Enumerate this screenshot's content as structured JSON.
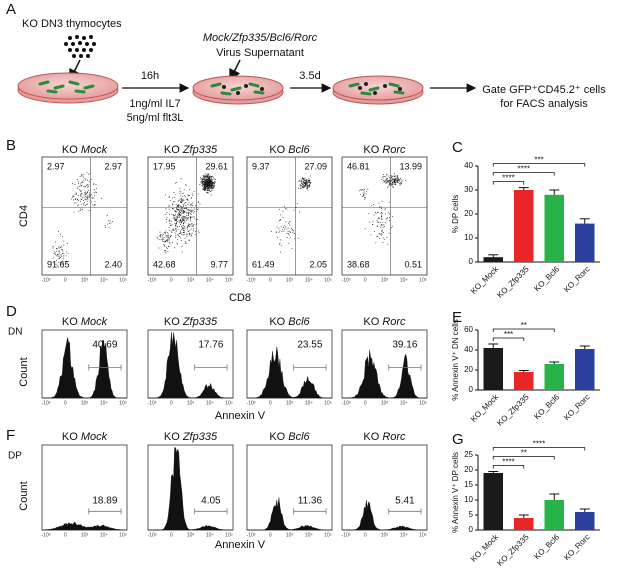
{
  "panel_a": {
    "label": "A",
    "cells": "KO DN3 thymocytes",
    "virus": "Mock/Zfp335/Bcl6/Rorc",
    "virus_sub": "Virus Supernatant",
    "time1": "16h",
    "cond1": "1ng/ml IL7",
    "cond2": "5ng/ml flt3L",
    "time2": "3.5d",
    "gate1": "Gate GFP⁺CD45.2⁺ cells",
    "gate2": "for FACS analysis"
  },
  "samples": [
    {
      "prefix": "KO",
      "name": "Mock"
    },
    {
      "prefix": "KO",
      "name": "Zfp335"
    },
    {
      "prefix": "KO",
      "name": "Bcl6"
    },
    {
      "prefix": "KO",
      "name": "Rorc"
    }
  ],
  "flow_ticks": [
    "-10³",
    "0",
    "10³",
    "10⁴",
    "10⁵"
  ],
  "panel_b": {
    "label": "B",
    "y_label": "CD4",
    "x_label": "CD8",
    "quadrants": [
      [
        "2.97",
        "2.97",
        "91.65",
        "2.40"
      ],
      [
        "17.95",
        "29.61",
        "42.68",
        "9.77"
      ],
      [
        "9.37",
        "27.09",
        "61.49",
        "2.05"
      ],
      [
        "46.81",
        "13.99",
        "38.68",
        "0.51"
      ]
    ]
  },
  "panel_d": {
    "label": "D",
    "population": "DN",
    "y_label": "Count",
    "x_label": "Annexin V",
    "gates": [
      "40.69",
      "17.76",
      "23.55",
      "39.16"
    ]
  },
  "panel_f": {
    "label": "F",
    "population": "DP",
    "y_label": "Count",
    "x_label": "Annexin V",
    "gates": [
      "18.89",
      "4.05",
      "11.36",
      "5.41"
    ]
  },
  "chart_data": [
    {
      "type": "bar",
      "label": "C",
      "y_label": "% DP cells",
      "categories": [
        "KO_Mock",
        "KO_Zfp335",
        "KO_Bcl6",
        "KO_Rorc"
      ],
      "colors": [
        "#1a1a1a",
        "#e8262a",
        "#27b34a",
        "#2b3f9e"
      ],
      "values": [
        2,
        30,
        28,
        16
      ],
      "errors": [
        1,
        1,
        2,
        2
      ],
      "ylim": [
        0,
        40
      ],
      "yticks": [
        0,
        10,
        20,
        30,
        40
      ],
      "brackets": [
        {
          "label": "****",
          "between": [
            0,
            1
          ]
        },
        {
          "label": "****",
          "between": [
            0,
            2
          ]
        },
        {
          "label": "***",
          "between": [
            0,
            3
          ]
        }
      ]
    },
    {
      "type": "bar",
      "label": "E",
      "y_label": "% Annexin V⁺ DN cells",
      "categories": [
        "KO_Mock",
        "KO_Zfp335",
        "KO_Bcl6",
        "KO_Rorc"
      ],
      "colors": [
        "#1a1a1a",
        "#e8262a",
        "#27b34a",
        "#2b3f9e"
      ],
      "values": [
        42,
        18,
        26,
        41
      ],
      "errors": [
        4,
        1.5,
        2,
        3
      ],
      "ylim": [
        0,
        60
      ],
      "yticks": [
        0,
        20,
        40,
        60
      ],
      "brackets": [
        {
          "label": "***",
          "between": [
            0,
            1
          ]
        },
        {
          "label": "**",
          "between": [
            0,
            2
          ]
        }
      ]
    },
    {
      "type": "bar",
      "label": "G",
      "y_label": "% Annexin V⁺ DP cells",
      "categories": [
        "KO_Mock",
        "KO_Zfp335",
        "KO_Bcl6",
        "KO_Rorc"
      ],
      "colors": [
        "#1a1a1a",
        "#e8262a",
        "#27b34a",
        "#2b3f9e"
      ],
      "values": [
        19,
        4,
        10,
        6
      ],
      "errors": [
        0.5,
        1,
        2,
        1
      ],
      "ylim": [
        0,
        25
      ],
      "yticks": [
        0,
        5,
        10,
        15,
        20,
        25
      ],
      "brackets": [
        {
          "label": "****",
          "between": [
            0,
            1
          ]
        },
        {
          "label": "**",
          "between": [
            0,
            2
          ]
        },
        {
          "label": "****",
          "between": [
            0,
            3
          ]
        }
      ]
    }
  ]
}
